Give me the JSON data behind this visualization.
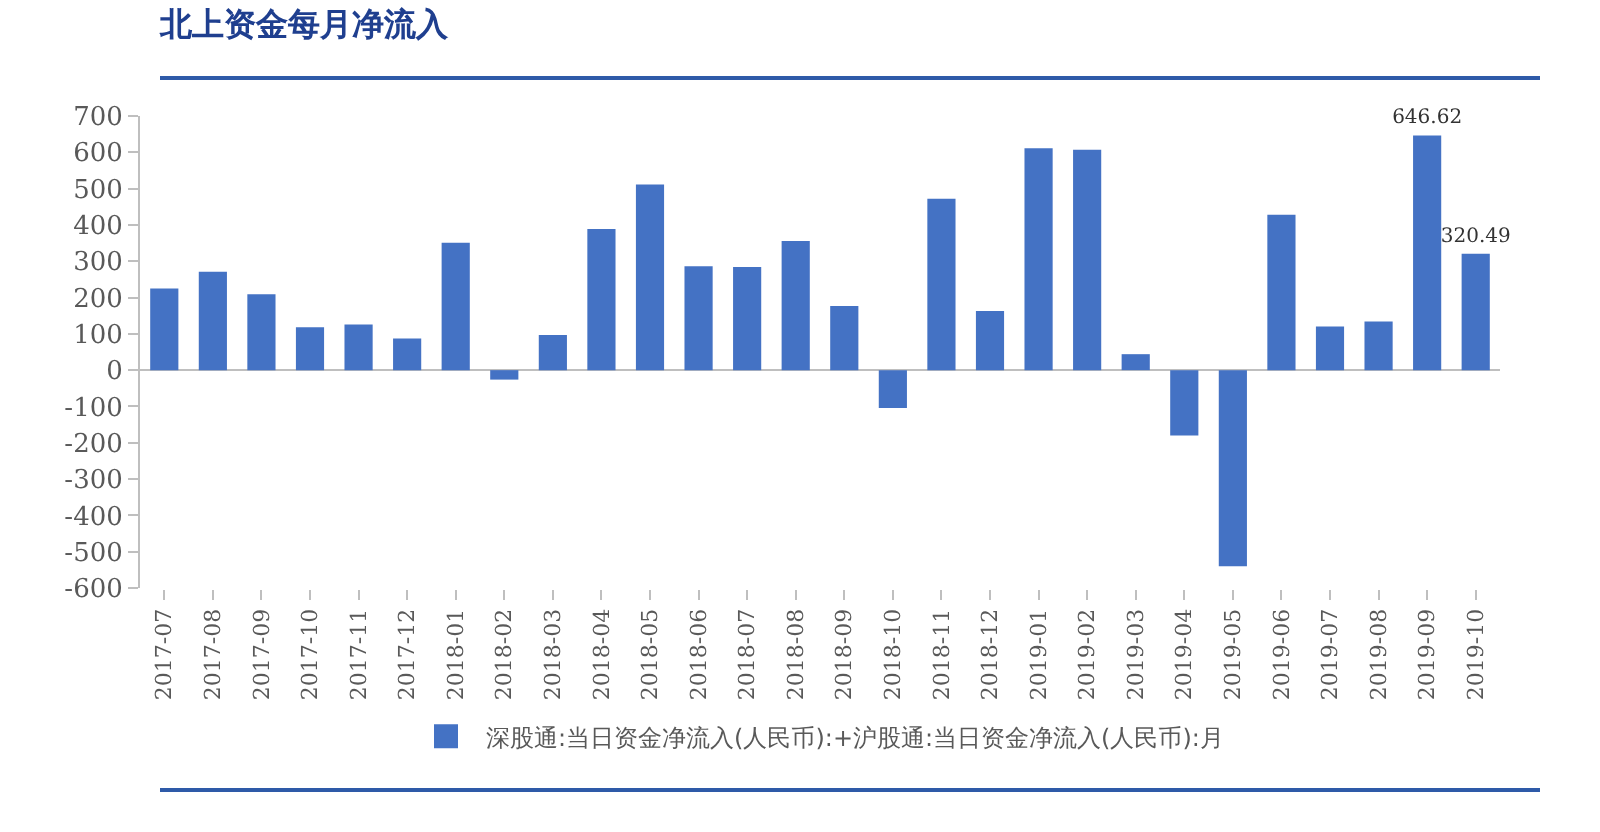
{
  "chart_data": {
    "type": "bar",
    "title": "北上资金每月净流入",
    "categories": [
      "2017-07",
      "2017-08",
      "2017-09",
      "2017-10",
      "2017-11",
      "2017-12",
      "2018-01",
      "2018-02",
      "2018-03",
      "2018-04",
      "2018-05",
      "2018-06",
      "2018-07",
      "2018-08",
      "2018-09",
      "2018-10",
      "2018-11",
      "2018-12",
      "2019-01",
      "2019-02",
      "2019-03",
      "2019-04",
      "2019-05",
      "2019-06",
      "2019-07",
      "2019-08",
      "2019-09",
      "2019-10"
    ],
    "series": [
      {
        "name": "深股通:当日资金净流入(人民币):+沪股通:当日资金净流入(人民币):月",
        "color": "#4472c4",
        "values": [
          225,
          271,
          209,
          118,
          126,
          87,
          351,
          -26,
          97,
          389,
          511,
          286,
          284,
          356,
          177,
          -104,
          472,
          163,
          611,
          607,
          44,
          -180,
          -540,
          428,
          120,
          134,
          646.62,
          320.49
        ],
        "value_labels": [
          null,
          null,
          null,
          null,
          null,
          null,
          null,
          null,
          null,
          null,
          null,
          null,
          null,
          null,
          null,
          null,
          null,
          null,
          null,
          null,
          null,
          null,
          null,
          null,
          null,
          null,
          "646.62",
          "320.49"
        ]
      }
    ],
    "ylim": [
      -600,
      700
    ],
    "yticks": [
      -600,
      -500,
      -400,
      -300,
      -200,
      -100,
      0,
      100,
      200,
      300,
      400,
      500,
      600,
      700
    ],
    "legend": "bottom"
  }
}
